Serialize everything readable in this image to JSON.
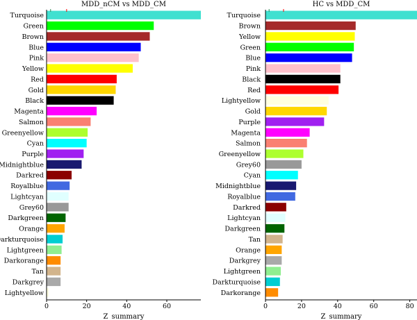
{
  "chart_data": [
    {
      "type": "bar",
      "orientation": "horizontal",
      "title": "MDD_nCM vs MDD_CM",
      "xlabel": "Z_summary",
      "ylabel": "",
      "xlim": [
        0,
        77
      ],
      "xticks": [
        0,
        20,
        40,
        60
      ],
      "categories": [
        "Turquoise",
        "Green",
        "Brown",
        "Blue",
        "Pink",
        "Yellow",
        "Red",
        "Gold",
        "Black",
        "Magenta",
        "Salmon",
        "Greenyellow",
        "Cyan",
        "Purple",
        "Midnightblue",
        "Darkred",
        "Royalblue",
        "Lightcyan",
        "Grey60",
        "Darkgreen",
        "Orange",
        "Darkturquoise",
        "Lightgreen",
        "Darkorange",
        "Tan",
        "Darkgrey",
        "Lightyellow"
      ],
      "values": [
        77,
        53.5,
        51.5,
        47,
        46,
        43,
        35,
        34.5,
        33.5,
        25,
        22,
        20.5,
        20,
        18.5,
        17.5,
        12.5,
        11.5,
        11,
        11,
        9.5,
        9,
        8,
        7.5,
        7,
        7,
        7,
        1
      ],
      "colors": [
        "#40E0D0",
        "#00FF00",
        "#A52A2A",
        "#0000FF",
        "#FFC0CB",
        "#FFFF00",
        "#FF0000",
        "#FFD700",
        "#000000",
        "#FF00FF",
        "#FA8072",
        "#ADFF2F",
        "#00FFFF",
        "#A020F0",
        "#191970",
        "#8B0000",
        "#4169E1",
        "#E0FFFF",
        "#999999",
        "#006400",
        "#FFA500",
        "#00CED1",
        "#90EE90",
        "#FF8C00",
        "#D2B48C",
        "#A9A9A9",
        "#FFFFE0"
      ],
      "reference_lines": [
        2,
        10
      ],
      "reference_colors": [
        "#2e8b57",
        "#ff0000"
      ]
    },
    {
      "type": "bar",
      "orientation": "horizontal",
      "title": "HC vs MDD_CM",
      "xlabel": "Z_summary",
      "ylabel": "",
      "xlim": [
        0,
        84
      ],
      "xticks": [
        0,
        20,
        40,
        60,
        80
      ],
      "categories": [
        "Turquoise",
        "Brown",
        "Yellow",
        "Green",
        "Blue",
        "Pink",
        "Black",
        "Red",
        "Lightyellow",
        "Gold",
        "Purple",
        "Magenta",
        "Salmon",
        "Greenyellow",
        "Grey60",
        "Cyan",
        "Midnightblue",
        "Royalblue",
        "Darkred",
        "Lightcyan",
        "Darkgreen",
        "Tan",
        "Orange",
        "Darkgrey",
        "Lightgreen",
        "Darkturquoise",
        "Darkorange"
      ],
      "values": [
        84,
        50,
        49.5,
        49,
        48,
        41.5,
        41.5,
        40.5,
        35,
        34,
        32.5,
        24.5,
        23,
        21,
        20,
        18,
        17,
        16.5,
        11.5,
        11,
        10.5,
        9.5,
        9,
        9,
        8.5,
        8,
        7
      ],
      "colors": [
        "#40E0D0",
        "#A52A2A",
        "#FFFF00",
        "#00FF00",
        "#0000FF",
        "#FFC0CB",
        "#000000",
        "#FF0000",
        "#FFFFE0",
        "#FFD700",
        "#A020F0",
        "#FF00FF",
        "#FA8072",
        "#ADFF2F",
        "#999999",
        "#00FFFF",
        "#191970",
        "#4169E1",
        "#8B0000",
        "#E0FFFF",
        "#006400",
        "#D2B48C",
        "#FFA500",
        "#A9A9A9",
        "#90EE90",
        "#00CED1",
        "#FF8C00"
      ],
      "reference_lines": [
        2,
        10
      ],
      "reference_colors": [
        "#2e8b57",
        "#ff0000"
      ]
    }
  ]
}
